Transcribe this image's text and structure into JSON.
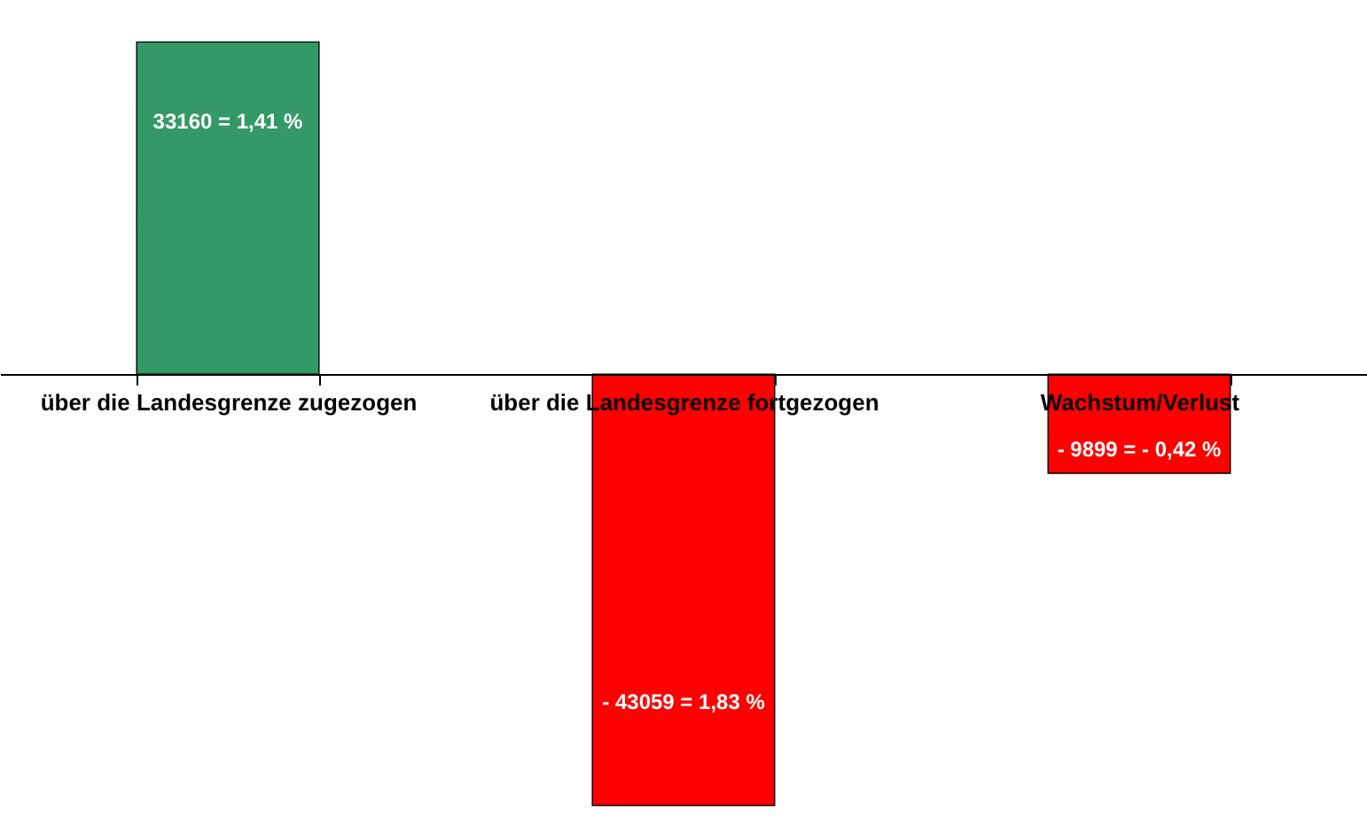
{
  "chart_data": {
    "type": "bar",
    "categories": [
      "über die Landesgrenze zugezogen",
      "über die Landesgrenze fortgezogen",
      "Wachstum/Verlust"
    ],
    "values": [
      33160,
      -43059,
      -9899
    ],
    "colors": [
      "#339966",
      "#ff0000",
      "#ff0000"
    ],
    "value_labels": [
      "33160 = 1,41 %",
      "- 43059 = 1,83 %",
      "- 9899 = - 0,42 %"
    ],
    "grid": false
  }
}
